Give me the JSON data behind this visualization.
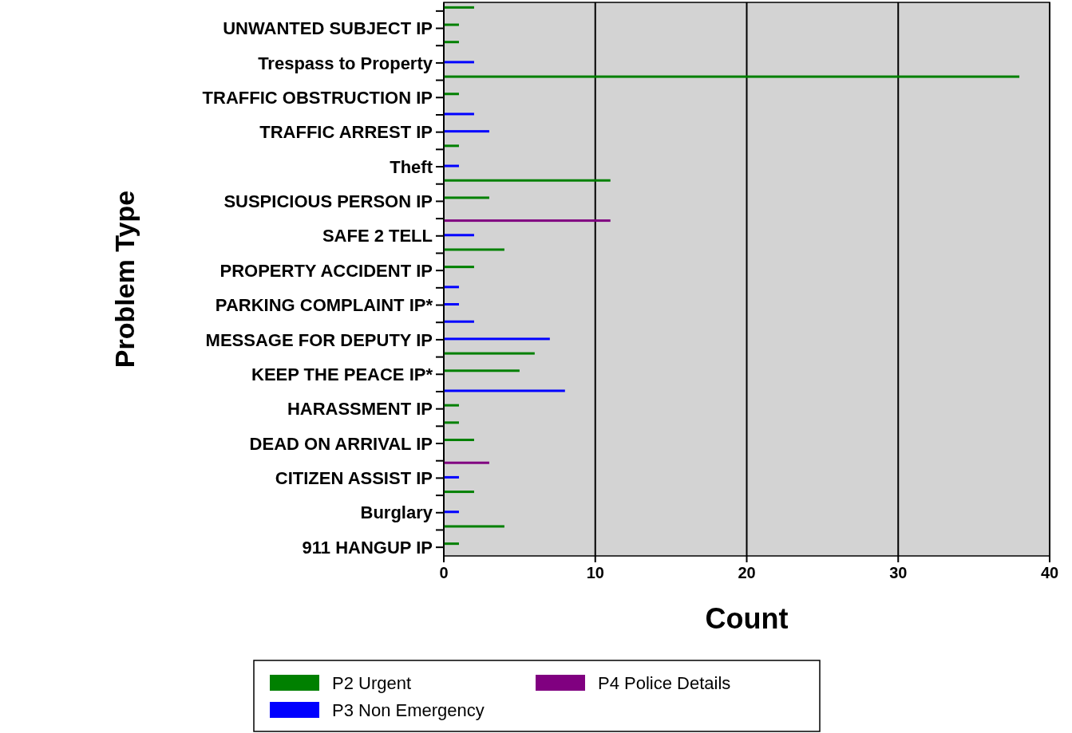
{
  "chart_data": {
    "type": "bar",
    "orientation": "horizontal",
    "xlabel": "Count",
    "ylabel": "Problem Type",
    "categories": [
      null,
      "UNWANTED SUBJECT IP",
      null,
      "Trespass to Property",
      null,
      "TRAFFIC OBSTRUCTION IP",
      null,
      "TRAFFIC ARREST IP",
      null,
      "Theft",
      null,
      "SUSPICIOUS PERSON IP",
      null,
      "SAFE 2 TELL",
      null,
      "PROPERTY ACCIDENT IP",
      null,
      "PARKING COMPLAINT IP*",
      null,
      "MESSAGE FOR DEPUTY IP",
      null,
      "KEEP THE PEACE IP*",
      null,
      "HARASSMENT IP",
      null,
      "DEAD ON ARRIVAL IP",
      null,
      "CITIZEN ASSIST IP",
      null,
      "Burglary",
      null,
      "911 HANGUP IP"
    ],
    "series": [
      {
        "name": "P2 Urgent",
        "color": "#008000",
        "values": [
          2,
          1,
          1,
          null,
          38,
          1,
          null,
          null,
          1,
          null,
          11,
          3,
          null,
          null,
          4,
          2,
          null,
          null,
          null,
          null,
          6,
          5,
          null,
          1,
          1,
          2,
          null,
          null,
          2,
          null,
          4,
          1
        ]
      },
      {
        "name": "P3 Non Emergency",
        "color": "#0000ff",
        "values": [
          null,
          null,
          null,
          2,
          null,
          null,
          2,
          3,
          null,
          1,
          null,
          null,
          null,
          2,
          null,
          null,
          1,
          1,
          2,
          7,
          null,
          null,
          8,
          null,
          null,
          null,
          null,
          1,
          null,
          1,
          null,
          null
        ]
      },
      {
        "name": "P4 Police Details",
        "color": "#800080",
        "values": [
          null,
          null,
          null,
          null,
          null,
          null,
          null,
          null,
          null,
          null,
          null,
          null,
          11,
          null,
          null,
          null,
          null,
          null,
          null,
          null,
          null,
          null,
          null,
          null,
          null,
          null,
          3,
          null,
          null,
          null,
          null,
          null
        ]
      }
    ],
    "xlim": [
      0,
      40
    ],
    "xticks": [
      0,
      10,
      20,
      30,
      40
    ],
    "grid": "x",
    "legend": "bottom"
  }
}
